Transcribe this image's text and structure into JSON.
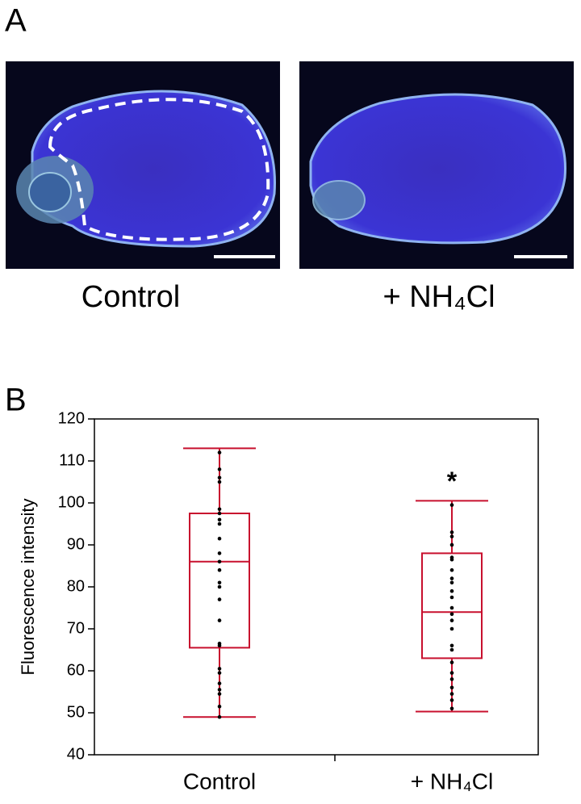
{
  "panel_labels": [
    "A",
    "B"
  ],
  "images": [
    {
      "label": "Control"
    },
    {
      "label": "+ NH₄Cl"
    }
  ],
  "chart_data": {
    "type": "box",
    "ylabel": "Fluorescence intensity",
    "categories": [
      "Control",
      "+ NH₄Cl"
    ],
    "color": "#c8102e",
    "point_color": "#000000",
    "ylim": [
      40,
      120
    ],
    "yticks": [
      40,
      50,
      60,
      70,
      80,
      90,
      100,
      110,
      120
    ],
    "annotation": "*",
    "boxes": [
      {
        "min": 49,
        "q1": 65.5,
        "median": 86,
        "q3": 97.5,
        "max": 113,
        "points": [
          112,
          108,
          106,
          105,
          98.5,
          97.5,
          96,
          95,
          91.5,
          88,
          86,
          84,
          81,
          80,
          77,
          72,
          66.5,
          66,
          60.5,
          59.5,
          57,
          55.5,
          54.5,
          51.5,
          49
        ]
      },
      {
        "min": 50.3,
        "q1": 63,
        "median": 74,
        "q3": 88,
        "max": 100.5,
        "points": [
          99.5,
          93,
          92,
          90,
          87,
          86.5,
          84,
          82,
          81,
          79,
          77.5,
          75,
          73.5,
          72,
          70,
          66,
          65,
          62,
          59.5,
          58,
          56,
          54.5,
          53,
          51
        ]
      }
    ]
  }
}
